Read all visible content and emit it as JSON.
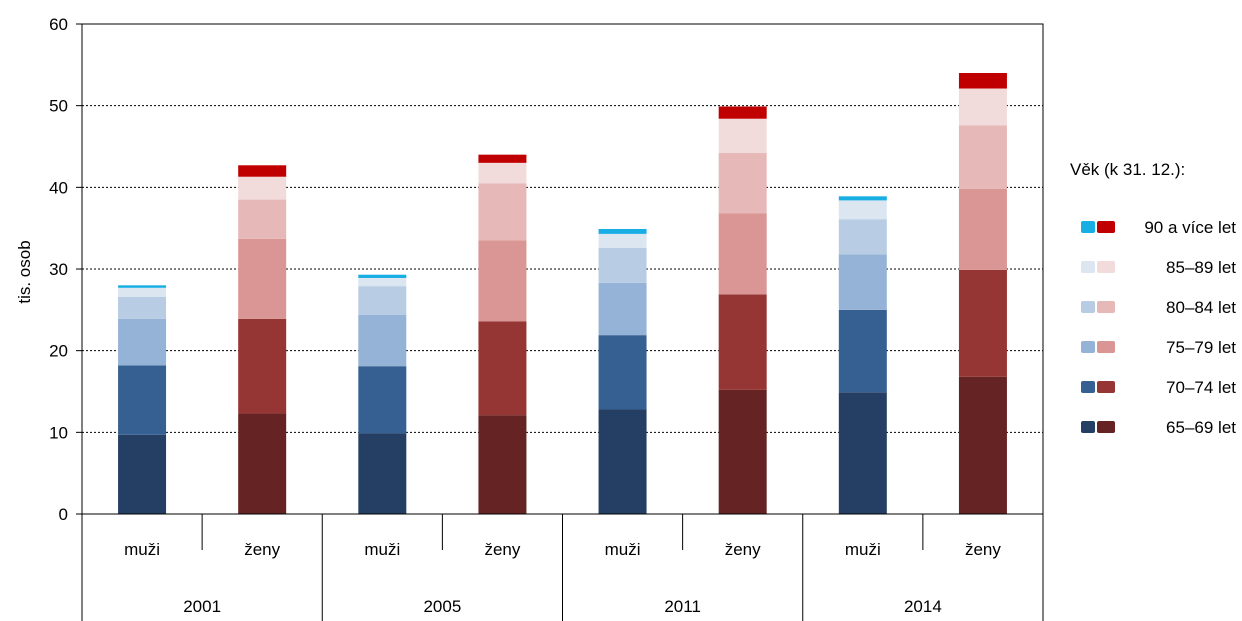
{
  "chart_data": {
    "type": "bar",
    "stacked": true,
    "ylabel": "tis. osob",
    "ylim": [
      0,
      60
    ],
    "yticks": [
      0,
      10,
      20,
      30,
      40,
      50,
      60
    ],
    "grid": true,
    "legend_position": "right",
    "legend_title": "Věk (k 31. 12.):",
    "groups": [
      "2001",
      "2005",
      "2011",
      "2014"
    ],
    "sexes": [
      "muži",
      "ženy"
    ],
    "categories": [
      "2001 muži",
      "2001 ženy",
      "2005 muži",
      "2005 ženy",
      "2011 muži",
      "2011 ženy",
      "2014 muži",
      "2014 ženy"
    ],
    "series": [
      {
        "name": "65–69 let",
        "values": [
          9.7,
          12.3,
          9.9,
          12.1,
          12.8,
          15.2,
          14.9,
          16.8
        ],
        "colors": [
          "#243f63",
          "#652323"
        ]
      },
      {
        "name": "70–74 let",
        "values": [
          8.5,
          11.6,
          8.2,
          11.5,
          9.1,
          11.7,
          10.1,
          13.1
        ],
        "colors": [
          "#366092",
          "#963634"
        ]
      },
      {
        "name": "75–79 let",
        "values": [
          5.7,
          9.8,
          6.3,
          9.9,
          6.4,
          9.9,
          6.8,
          9.9
        ],
        "colors": [
          "#95b3d7",
          "#da9694"
        ]
      },
      {
        "name": "80–84 let",
        "values": [
          2.7,
          4.8,
          3.5,
          7.0,
          4.3,
          7.4,
          4.3,
          7.8
        ],
        "colors": [
          "#b8cce4",
          "#e6b8b7"
        ]
      },
      {
        "name": "85–89 let",
        "values": [
          1.1,
          2.8,
          1.0,
          2.5,
          1.7,
          4.2,
          2.3,
          4.5
        ],
        "colors": [
          "#dce6f1",
          "#f2dcdb"
        ]
      },
      {
        "name": "90 a více let",
        "values": [
          0.3,
          1.4,
          0.4,
          1.0,
          0.6,
          1.5,
          0.5,
          1.9
        ],
        "colors": [
          "#18aee4",
          "#c00000"
        ]
      }
    ]
  }
}
